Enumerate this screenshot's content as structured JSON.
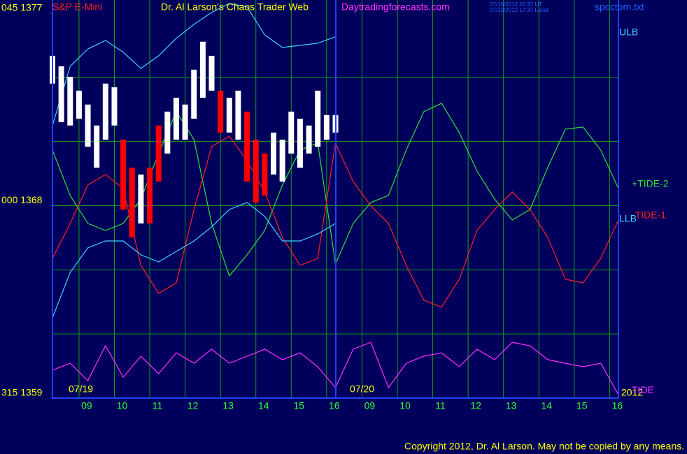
{
  "chart_data": {
    "type": "line",
    "title": "Dr. Al Larson's Chaos Trader Web",
    "site": "Daytradingforecasts.com",
    "timestamps": [
      "07/19/2012 22:37 UT",
      "07/19/2012 17:37 Local"
    ],
    "file": "spcctom.txt",
    "copyright": "Copyright 2012, Dr. Al Larson. May not be copied by any means.",
    "date_labels": [
      "07/19",
      "07/20",
      "2012"
    ],
    "xlim": [
      0,
      16
    ],
    "ylim": [
      1359,
      1377
    ],
    "yticks": [
      {
        "value": 1377,
        "label": "045 1377"
      },
      {
        "value": 1368,
        "label": "000 1368"
      },
      {
        "value": 1359,
        "label": "315 1359"
      }
    ],
    "ygrid": [
      1362,
      1365,
      1368,
      1371,
      1374
    ],
    "xticks": [
      {
        "value": 0.75,
        "label": "09"
      },
      {
        "value": 1.75,
        "label": "10"
      },
      {
        "value": 2.75,
        "label": "11"
      },
      {
        "value": 3.75,
        "label": "12"
      },
      {
        "value": 4.75,
        "label": "13"
      },
      {
        "value": 5.75,
        "label": "14"
      },
      {
        "value": 6.75,
        "label": "15"
      },
      {
        "value": 7.75,
        "label": "16"
      },
      {
        "value": 8.75,
        "label": "09"
      },
      {
        "value": 9.75,
        "label": "10"
      },
      {
        "value": 10.75,
        "label": "11"
      },
      {
        "value": 11.75,
        "label": "12"
      },
      {
        "value": 12.75,
        "label": "13"
      },
      {
        "value": 13.75,
        "label": "14"
      },
      {
        "value": 14.75,
        "label": "15"
      },
      {
        "value": 15.75,
        "label": "16"
      }
    ],
    "x": [
      0,
      0.5,
      1,
      1.5,
      2,
      2.5,
      3,
      3.5,
      4,
      4.5,
      5,
      5.5,
      6,
      6.5,
      7,
      7.5,
      8,
      8.5,
      9,
      9.5,
      10,
      10.5,
      11,
      11.5,
      12,
      12.5,
      13,
      13.5,
      14,
      14.5,
      15,
      15.5,
      16
    ],
    "series": [
      {
        "name": "ULB",
        "color": "#40d0ff",
        "values": [
          1371.75,
          1374.52,
          1375.33,
          1375.73,
          1375.18,
          1374.42,
          1375.01,
          1375.83,
          1376.48,
          1377.04,
          1377.46,
          1377.3,
          1375.99,
          1375.4,
          1375.5,
          1375.6,
          1375.9,
          null,
          null,
          null,
          null,
          null,
          null,
          null,
          null,
          null,
          null,
          null,
          null,
          null,
          null,
          null,
          null
        ]
      },
      {
        "name": "+TIDE-2",
        "color": "#30e030",
        "values": [
          1370.6,
          1368.48,
          1367.17,
          1366.84,
          1367.17,
          1368.31,
          1370.44,
          1372.4,
          1371.09,
          1367.17,
          1364.72,
          1365.7,
          1366.84,
          1368.97,
          1370.6,
          1370.93,
          1365.27,
          1367.17,
          1368.15,
          1368.48,
          1370.6,
          1372.4,
          1372.79,
          1371.42,
          1369.62,
          1368.31,
          1367.33,
          1367.82,
          1369.78,
          1371.58,
          1371.68,
          1370.6,
          1368.8
        ]
      },
      {
        "name": "-TIDE-1",
        "color": "#ff2020",
        "values": [
          1365.54,
          1367.17,
          1368.97,
          1369.46,
          1368.8,
          1365.21,
          1363.9,
          1364.39,
          1367.82,
          1370.76,
          1371.25,
          1370.11,
          1368.64,
          1366.52,
          1365.21,
          1365.54,
          1370.93,
          1369.13,
          1367.99,
          1367.17,
          1365.21,
          1363.58,
          1363.25,
          1364.56,
          1366.84,
          1367.82,
          1368.64,
          1367.82,
          1366.52,
          1364.56,
          1364.39,
          1365.54,
          1367.33
        ]
      },
      {
        "name": "LLB",
        "color": "#40d0ff",
        "values": [
          1362.76,
          1364.88,
          1366.03,
          1366.35,
          1366.35,
          1365.7,
          1365.37,
          1365.86,
          1366.35,
          1367.01,
          1367.82,
          1368.15,
          1367.5,
          1366.35,
          1366.35,
          1366.68,
          1367.17,
          null,
          null,
          null,
          null,
          null,
          null,
          null,
          null,
          null,
          null,
          null,
          null,
          null,
          null,
          null,
          null
        ]
      },
      {
        "name": "TIDE",
        "color": "#ff30ff",
        "values": [
          1360.31,
          1360.63,
          1359.82,
          1361.45,
          1359.98,
          1360.96,
          1360.14,
          1361.12,
          1360.63,
          1361.29,
          1360.63,
          1360.96,
          1361.29,
          1360.8,
          1361.12,
          1360.47,
          1359.49,
          1361.29,
          1361.61,
          1359.49,
          1360.63,
          1360.96,
          1361.12,
          1360.47,
          1361.29,
          1360.8,
          1361.61,
          1361.45,
          1360.8,
          1360.63,
          1360.47,
          1360.63,
          1359.16
        ]
      }
    ],
    "bars": {
      "name": "S&P E-Mini",
      "x": [
        0,
        0.25,
        0.5,
        0.75,
        1,
        1.25,
        1.5,
        1.75,
        2,
        2.25,
        2.5,
        2.75,
        3,
        3.25,
        3.5,
        3.75,
        4,
        4.25,
        4.5,
        4.75,
        5,
        5.25,
        5.5,
        5.75,
        6,
        6.25,
        6.5,
        6.75,
        7,
        7.25,
        7.5,
        7.75,
        8
      ],
      "high": [
        1375.01,
        1374.52,
        1374.03,
        1373.38,
        1372.73,
        1371.75,
        1373.71,
        1373.54,
        1371.09,
        1369.78,
        1369.46,
        1369.78,
        1371.75,
        1372.4,
        1373.05,
        1372.73,
        1374.36,
        1375.67,
        1375.01,
        1373.38,
        1373.05,
        1373.38,
        1372.4,
        1371.09,
        1370.44,
        1371.42,
        1371.09,
        1372.4,
        1372.07,
        1371.75,
        1373.38,
        1372.24,
        1372.24
      ],
      "low": [
        1373.71,
        1371.91,
        1371.75,
        1372.07,
        1370.76,
        1369.78,
        1371.09,
        1371.75,
        1367.82,
        1366.52,
        1367.17,
        1367.17,
        1369.13,
        1370.44,
        1371.09,
        1371.09,
        1372.07,
        1373.05,
        1373.38,
        1371.42,
        1371.42,
        1371.09,
        1369.13,
        1368.15,
        1368.48,
        1369.46,
        1369.13,
        1370.44,
        1369.78,
        1370.44,
        1370.76,
        1371.09,
        1371.42
      ],
      "colors": [
        "#ffffff",
        "#ffffff",
        "#ffffff",
        "#ffffff",
        "#ffffff",
        "#ffffff",
        "#ffffff",
        "#ffffff",
        "#ff0000",
        "#ff0000",
        "#ffffff",
        "#ff0000",
        "#ff0000",
        "#ffffff",
        "#ffffff",
        "#ffffff",
        "#ffffff",
        "#ffffff",
        "#ffffff",
        "#ff0000",
        "#ffffff",
        "#ffffff",
        "#ff0000",
        "#ff0000",
        "#ff0000",
        "#ffffff",
        "#ffffff",
        "#ffffff",
        "#ffffff",
        "#ffffff",
        "#ffffff",
        "#ffffff",
        "#ffffff"
      ]
    }
  }
}
